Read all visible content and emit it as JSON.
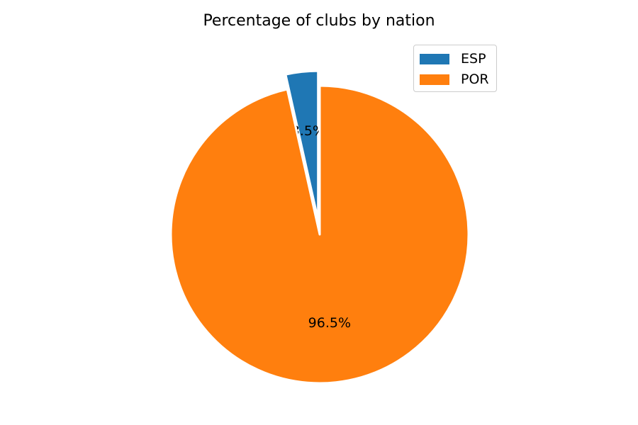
{
  "chart_data": {
    "type": "pie",
    "title": "Percentage of clubs by nation",
    "slices": [
      {
        "label": "ESP",
        "value": 3.5,
        "display": "3.5%",
        "color": "#1f77b4",
        "exploded": true
      },
      {
        "label": "POR",
        "value": 96.5,
        "display": "96.5%",
        "color": "#ff7f0e",
        "exploded": false
      }
    ],
    "legend_placement": "top-right",
    "start_angle": "top (90°), counterclockwise"
  }
}
